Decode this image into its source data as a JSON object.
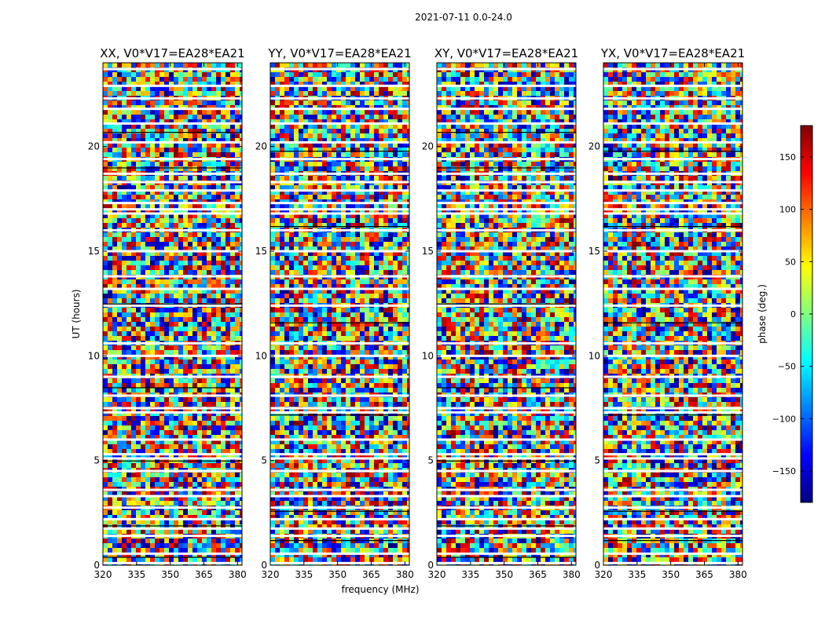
{
  "chart_data": {
    "type": "heatmap",
    "suptitle": "2021-07-11 0.0-24.0",
    "xlabel": "frequency (MHz)",
    "ylabel": "UT (hours)",
    "xlim": [
      320,
      382
    ],
    "ylim": [
      0,
      24
    ],
    "xticks": [
      "320",
      "335",
      "350",
      "365",
      "380"
    ],
    "yticks": [
      "0",
      "5",
      "10",
      "15",
      "20"
    ],
    "panels": [
      {
        "title": "XX, V0*V17=EA28*EA21"
      },
      {
        "title": "YY, V0*V17=EA28*EA21"
      },
      {
        "title": "XY, V0*V17=EA28*EA21"
      },
      {
        "title": "YX, V0*V17=EA28*EA21"
      }
    ],
    "colorbar": {
      "label": "phase (deg.)",
      "range": [
        -180,
        180
      ],
      "ticks": [
        "150",
        "100",
        "50",
        "0",
        "−50",
        "−100",
        "−150"
      ],
      "colormap": "jet"
    },
    "blank_rows_hours": [
      0.1,
      0.55,
      1.4,
      1.75,
      2.2,
      2.75,
      3.3,
      3.6,
      4.5,
      5.1,
      5.3,
      6.0,
      7.3,
      7.5,
      8.1,
      9.0,
      10.0,
      10.6,
      12.4,
      13.2,
      13.8,
      15.0,
      16.0,
      16.8,
      17.0,
      17.3,
      17.9,
      18.3,
      18.7,
      19.4,
      20.2,
      21.1,
      21.8,
      22.3,
      22.9,
      23.7
    ]
  }
}
